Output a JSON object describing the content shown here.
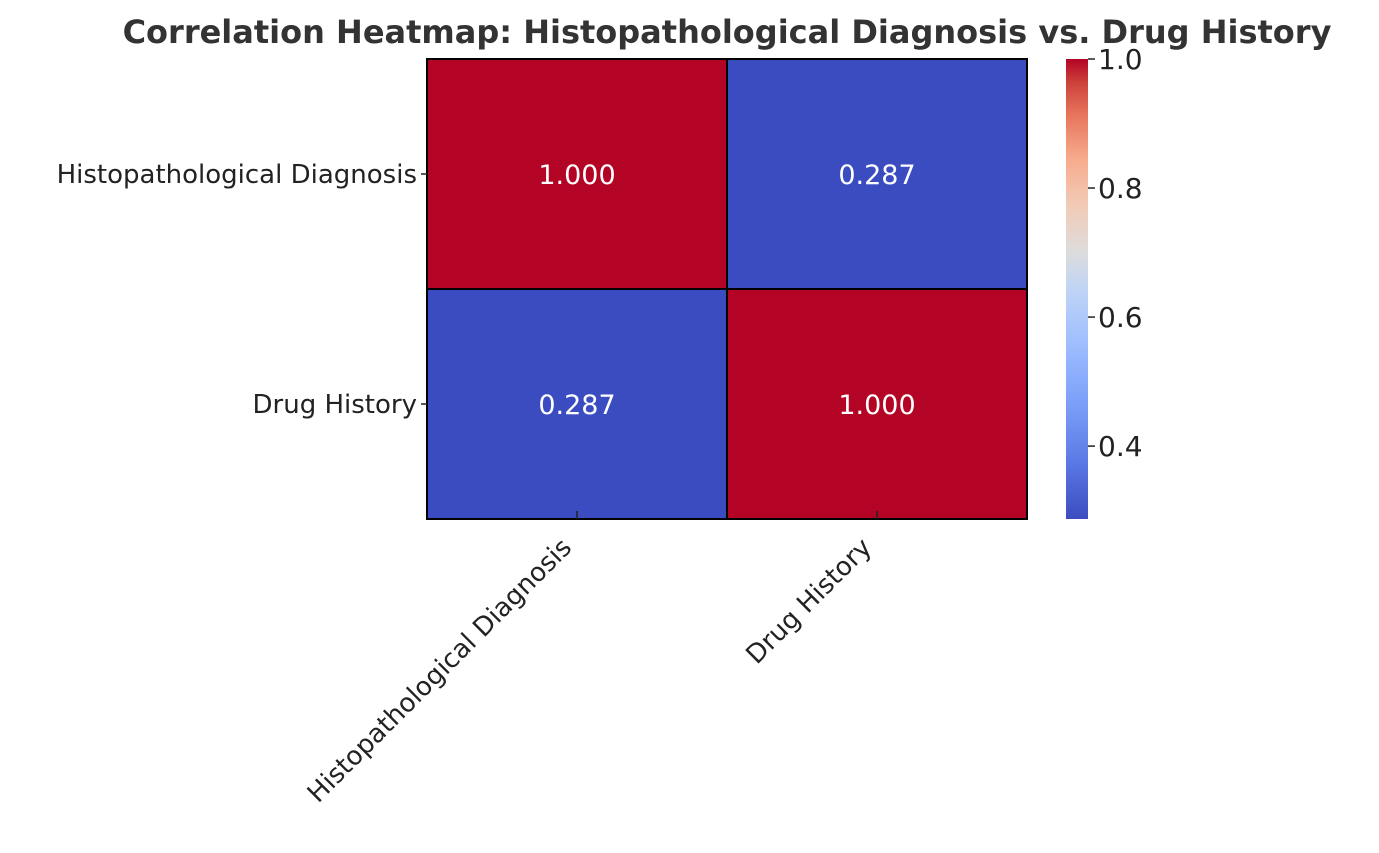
{
  "chart_data": {
    "type": "heatmap",
    "title": "Correlation Heatmap: Histopathological Diagnosis vs. Drug History",
    "xlabel": "",
    "ylabel": "",
    "x_categories": [
      "Histopathological Diagnosis",
      "Drug History"
    ],
    "y_categories": [
      "Histopathological Diagnosis",
      "Drug History"
    ],
    "values": [
      [
        1.0,
        0.287
      ],
      [
        0.287,
        1.0
      ]
    ],
    "annotations": [
      [
        "1.000",
        "0.287"
      ],
      [
        "0.287",
        "1.000"
      ]
    ],
    "colormap": "coolwarm",
    "colorbar": {
      "min": 0.287,
      "max": 1.0,
      "ticks": [
        0.4,
        0.6,
        0.8,
        1.0
      ],
      "tick_labels": [
        "0.4",
        "0.6",
        "0.8",
        "1.0"
      ]
    },
    "colors": {
      "low": "#3b4cc0",
      "mid": "#dddddd",
      "high": "#b40426",
      "annotation_text": "#ffffff",
      "title_text": "#333333",
      "label_text": "#222222"
    }
  }
}
